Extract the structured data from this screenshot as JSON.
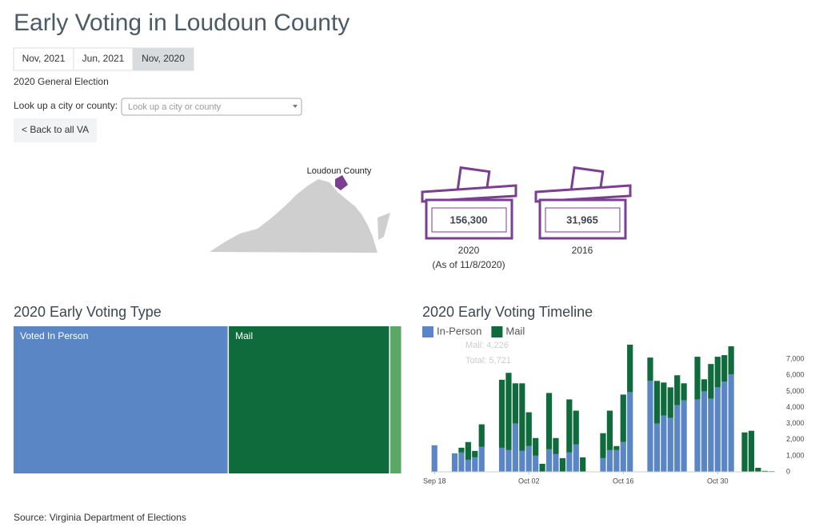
{
  "header": {
    "title": "Early Voting in Loudoun County"
  },
  "tabs": [
    {
      "label": "Nov, 2021",
      "active": false
    },
    {
      "label": "Jun, 2021",
      "active": false
    },
    {
      "label": "Nov, 2020",
      "active": true
    }
  ],
  "election": "2020 General Election",
  "lookup": {
    "label": "Look up a city or county:",
    "placeholder": "Look up a city or county"
  },
  "back": "< Back to all VA",
  "map": {
    "label": "Loudoun County"
  },
  "totals": [
    {
      "value": "156,300",
      "year": "2020",
      "note": "(As of 11/8/2020)"
    },
    {
      "value": "31,965",
      "year": "2016"
    }
  ],
  "chart_data": [
    {
      "type": "treemap",
      "title": "2020 Early Voting Type",
      "categories": [
        "Voted In Person",
        "Mail",
        null
      ],
      "values": [
        86550,
        64900,
        4850
      ],
      "colors": [
        "#5a86c6",
        "#0f6b3b",
        "#5ba766"
      ]
    },
    {
      "type": "bar",
      "stacked": true,
      "title": "2020 Early Voting Timeline",
      "categories": [
        "Sep 18",
        null,
        null,
        null,
        null,
        null,
        null,
        null,
        null,
        null,
        null,
        null,
        null,
        null,
        "Oct 02",
        null,
        null,
        null,
        null,
        null,
        null,
        null,
        null,
        null,
        null,
        null,
        null,
        null,
        "Oct 16",
        null,
        null,
        null,
        null,
        null,
        null,
        null,
        null,
        null,
        null,
        null,
        null,
        null,
        "Oct 30",
        null,
        null,
        null,
        null,
        null,
        null,
        null,
        null
      ],
      "series": [
        {
          "name": "In-Person",
          "color": "#5a86c6",
          "values": [
            1650,
            null,
            null,
            1150,
            1200,
            750,
            900,
            1550,
            null,
            null,
            1495,
            1350,
            3000,
            1300,
            1600,
            1000,
            0,
            1400,
            1100,
            0,
            1200,
            1700,
            0,
            null,
            null,
            850,
            1350,
            1350,
            1850,
            4950,
            null,
            null,
            5650,
            3000,
            3500,
            3350,
            4150,
            4450,
            null,
            4500,
            5000,
            4550,
            5250,
            5600,
            6050,
            null,
            0,
            0,
            0,
            0,
            0
          ]
        },
        {
          "name": "Mail",
          "color": "#0f6b3b",
          "values": [
            0,
            null,
            null,
            0,
            300,
            1100,
            400,
            1400,
            null,
            null,
            4226,
            4800,
            2500,
            4200,
            2100,
            1100,
            500,
            3500,
            1000,
            850,
            3300,
            2100,
            900,
            null,
            null,
            1550,
            2450,
            250,
            2950,
            2950,
            null,
            null,
            1450,
            2650,
            2050,
            1900,
            1850,
            1050,
            null,
            2650,
            750,
            2150,
            1900,
            1650,
            1750,
            null,
            2450,
            2550,
            250,
            60,
            40
          ]
        }
      ],
      "ylim": [
        0,
        8000
      ],
      "yticks": [
        0,
        {
          "value": 1000,
          "label": "1,000"
        },
        {
          "value": 2000,
          "label": "2,000"
        },
        {
          "value": 3000,
          "label": "3,000"
        },
        {
          "value": 4000,
          "label": "4,000"
        },
        {
          "value": 5000,
          "label": "5,000"
        },
        {
          "value": 6000,
          "label": "6,000"
        },
        {
          "value": 7000,
          "label": "7,000"
        }
      ],
      "tooltip": [
        "Mail: 4,226",
        "Total: 5,721"
      ]
    }
  ],
  "source": "Source: Virginia Department of Elections"
}
